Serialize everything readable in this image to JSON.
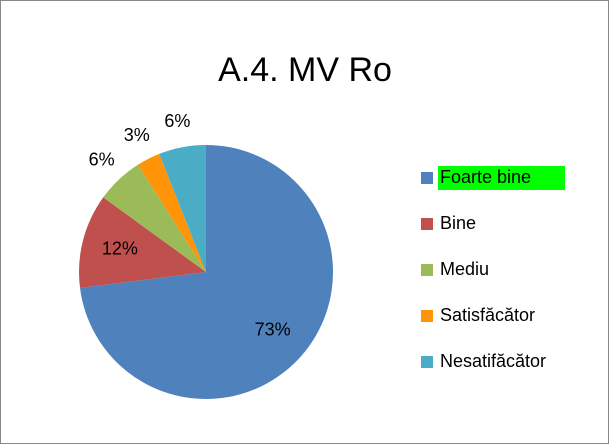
{
  "chart_data": {
    "type": "pie",
    "title": "A.4. MV Ro",
    "categories": [
      "Foarte bine",
      "Bine",
      "Mediu",
      "Satisfăcător",
      "Nesatifăcător"
    ],
    "values": [
      73,
      12,
      6,
      3,
      6
    ],
    "value_labels": [
      "73%",
      "12%",
      "6%",
      "3%",
      "6%"
    ],
    "colors": [
      "#4f81bd",
      "#c0504d",
      "#9bbb59",
      "#ff9408",
      "#4bacc6"
    ],
    "legend": "right"
  }
}
